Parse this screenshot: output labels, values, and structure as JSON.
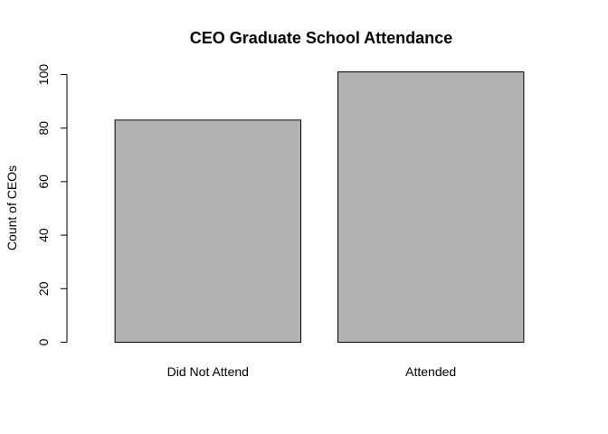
{
  "chart_data": {
    "type": "bar",
    "title": "CEO Graduate School Attendance",
    "xlabel": "",
    "ylabel": "Count of CEOs",
    "categories": [
      "Did Not Attend",
      "Attended"
    ],
    "values": [
      83,
      101
    ],
    "ylim": [
      0,
      100
    ],
    "yticks": [
      0,
      20,
      40,
      60,
      80,
      100
    ],
    "ytick_labels": [
      "0",
      "20",
      "40",
      "60",
      "80",
      "100"
    ],
    "grid": false,
    "legend": "none",
    "colors": {
      "bar_fill": "#b3b3b3",
      "bar_stroke": "#000000",
      "background": "#ffffff"
    }
  }
}
